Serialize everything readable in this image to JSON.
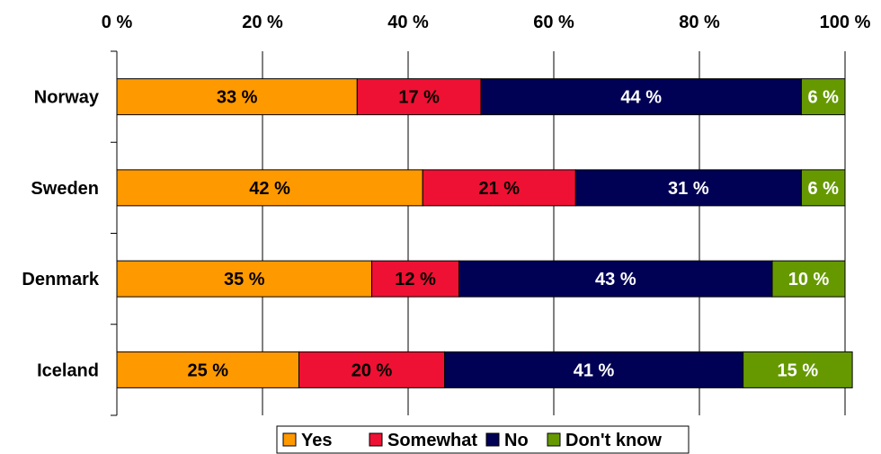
{
  "chart_data": {
    "type": "bar",
    "orientation": "horizontal",
    "stacked": true,
    "percent": true,
    "categories": [
      "Norway",
      "Sweden",
      "Denmark",
      "Iceland"
    ],
    "series": [
      {
        "name": "Yes",
        "color": "#FF9900",
        "values": [
          33,
          42,
          35,
          25
        ],
        "labels": [
          "33 %",
          "42 %",
          "35 %",
          "25 %"
        ],
        "label_color": "#000000"
      },
      {
        "name": "Somewhat",
        "color": "#EE1133",
        "values": [
          17,
          21,
          12,
          20
        ],
        "labels": [
          "17 %",
          "21 %",
          "12 %",
          "20 %"
        ],
        "label_color": "#000000"
      },
      {
        "name": "No",
        "color": "#000055",
        "values": [
          44,
          31,
          43,
          41
        ],
        "labels": [
          "44 %",
          "31 %",
          "43 %",
          "41 %"
        ],
        "label_color": "#ffffff"
      },
      {
        "name": "Don't know",
        "color": "#669900",
        "values": [
          6,
          6,
          10,
          15
        ],
        "labels": [
          "6 %",
          "6 %",
          "10 %",
          "15 %"
        ],
        "label_color": "#ffffff"
      }
    ],
    "xlim": [
      0,
      100
    ],
    "x_ticks": [
      0,
      20,
      40,
      60,
      80,
      100
    ],
    "x_tick_labels": [
      "0 %",
      "20 %",
      "40 %",
      "60 %",
      "80 %",
      "100 %"
    ],
    "x_axis_position": "top",
    "grid": "vertical",
    "legend": "bottom",
    "title": "",
    "xlabel": "",
    "ylabel": ""
  }
}
